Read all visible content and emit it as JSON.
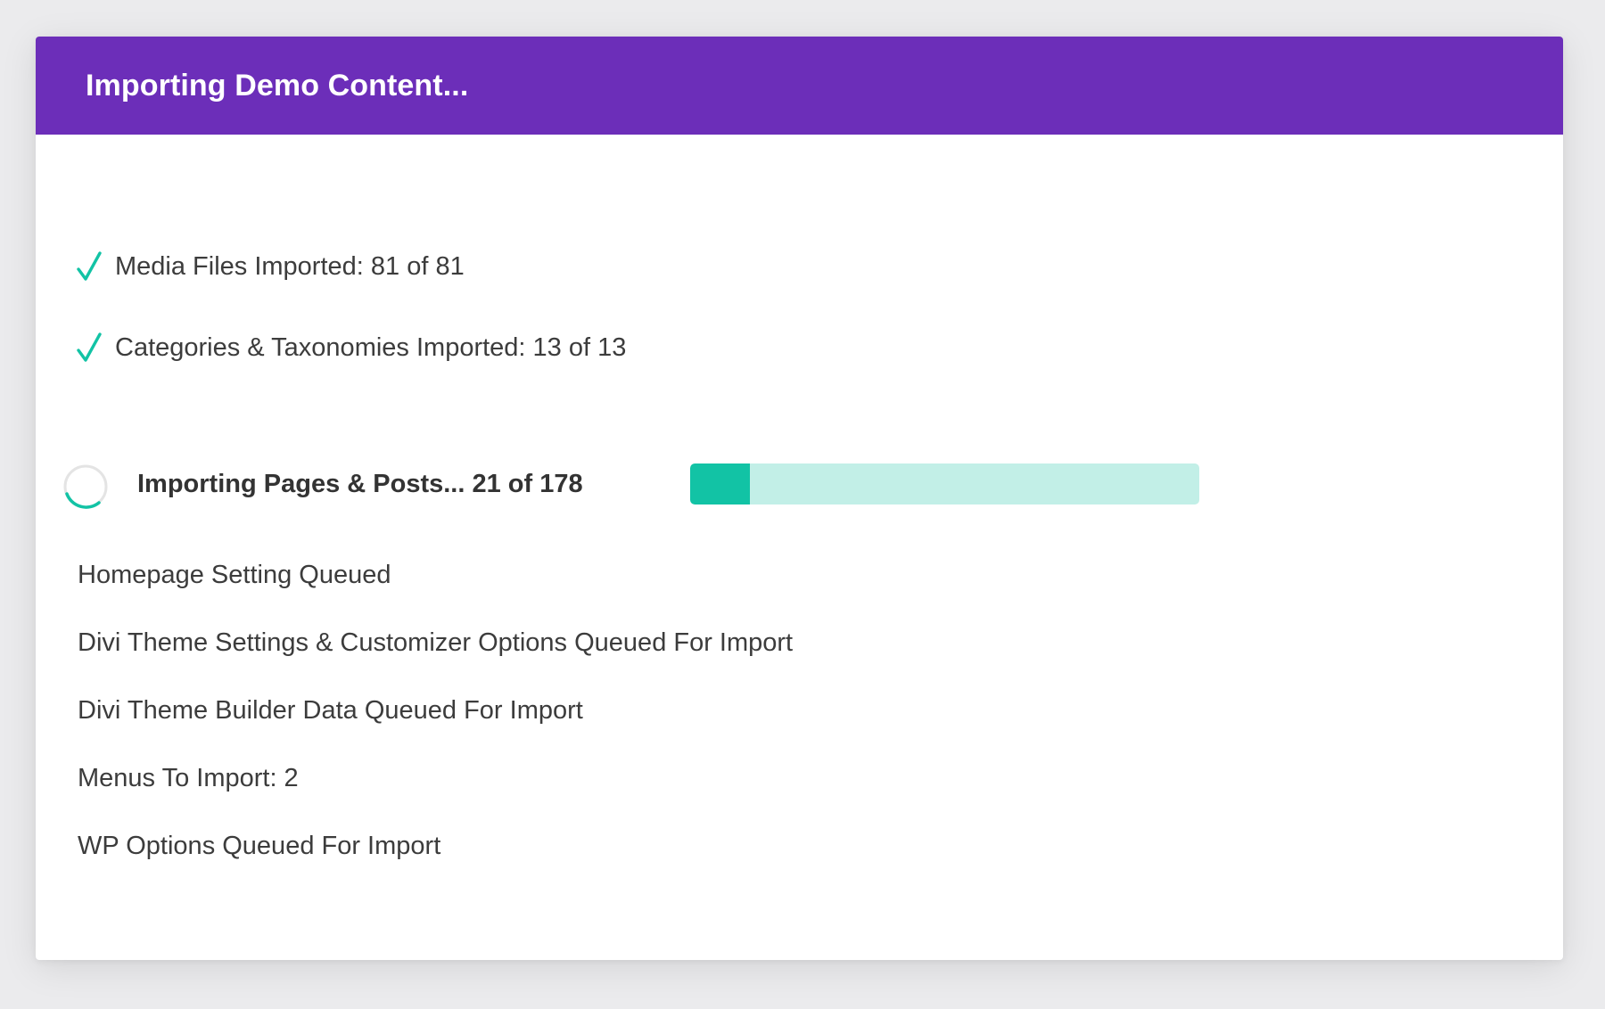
{
  "modal": {
    "title": "Importing Demo Content...",
    "header_color": "#6c2eb9"
  },
  "completed": [
    {
      "icon": "checkmark-icon",
      "text": "Media Files Imported: 81 of 81"
    },
    {
      "icon": "checkmark-icon",
      "text": "Categories & Taxonomies Imported: 13 of 13"
    }
  ],
  "current": {
    "icon": "loading-spinner-icon",
    "label": "Importing Pages & Posts... 21 of 178",
    "progress_fraction": 0.118,
    "fill_color": "#12c3a5",
    "track_color": "#c2efe7"
  },
  "queued": [
    "Homepage Setting Queued",
    "Divi Theme Settings & Customizer Options Queued For Import",
    "Divi Theme Builder Data Queued For Import",
    "Menus To Import: 2",
    "WP Options Queued For Import"
  ],
  "colors": {
    "accent": "#12c3a5",
    "text": "#3c3c3c"
  }
}
